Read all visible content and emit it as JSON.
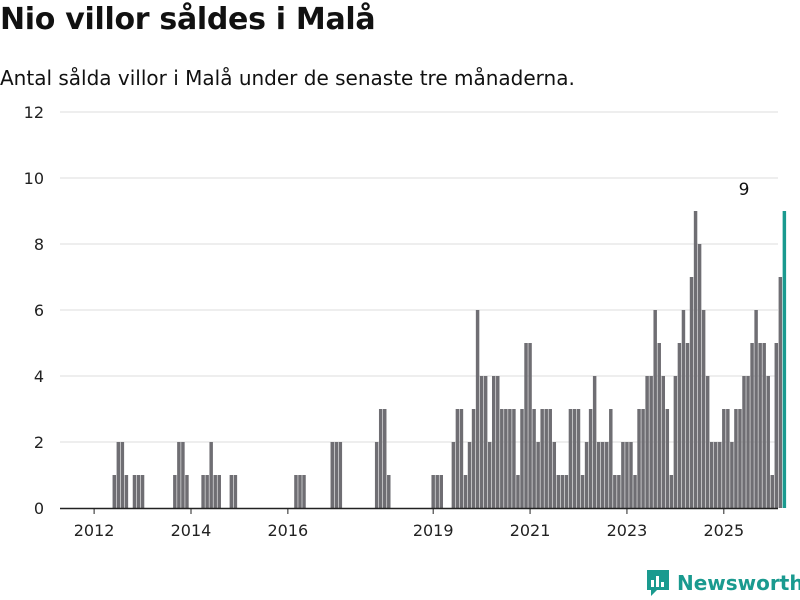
{
  "title": "Nio villor såldes i Malå",
  "subtitle": "Antal sålda villor i Malå under de senaste tre månaderna.",
  "brand": "Newsworthy",
  "colors": {
    "bar": "#6f6e73",
    "highlight": "#1a9a8f",
    "grid": "#dddddd",
    "axis": "#222222"
  },
  "chart_data": {
    "type": "bar",
    "x_unit": "month",
    "start": "2011-10",
    "end": "2025-06",
    "ylim": [
      0,
      12
    ],
    "yticks": [
      0,
      2,
      4,
      6,
      8,
      10,
      12
    ],
    "xticks": [
      "2012",
      "2014",
      "2016",
      "2019",
      "2021",
      "2023",
      "2025"
    ],
    "highlight_label": "9",
    "values": [
      0,
      0,
      0,
      0,
      0,
      0,
      0,
      0,
      1,
      2,
      2,
      1,
      0,
      1,
      1,
      1,
      0,
      0,
      0,
      0,
      0,
      0,
      0,
      1,
      2,
      2,
      1,
      0,
      0,
      0,
      1,
      1,
      2,
      1,
      1,
      0,
      0,
      1,
      1,
      0,
      0,
      0,
      0,
      0,
      0,
      0,
      0,
      0,
      0,
      0,
      0,
      0,
      0,
      1,
      1,
      1,
      0,
      0,
      0,
      0,
      0,
      0,
      2,
      2,
      2,
      0,
      0,
      0,
      0,
      0,
      0,
      0,
      0,
      2,
      3,
      3,
      1,
      0,
      0,
      0,
      0,
      0,
      0,
      0,
      0,
      0,
      0,
      1,
      1,
      1,
      0,
      0,
      2,
      3,
      3,
      1,
      2,
      3,
      6,
      4,
      4,
      2,
      4,
      4,
      3,
      3,
      3,
      3,
      1,
      3,
      5,
      5,
      3,
      2,
      3,
      3,
      3,
      2,
      1,
      1,
      1,
      3,
      3,
      3,
      1,
      2,
      3,
      4,
      2,
      2,
      2,
      3,
      1,
      1,
      2,
      2,
      2,
      1,
      3,
      3,
      4,
      4,
      6,
      5,
      4,
      3,
      1,
      4,
      5,
      6,
      5,
      7,
      9,
      8,
      6,
      4,
      2,
      2,
      2,
      3,
      3,
      2,
      3,
      3,
      4,
      4,
      5,
      6,
      5,
      5,
      4,
      1,
      5,
      7,
      9
    ]
  }
}
